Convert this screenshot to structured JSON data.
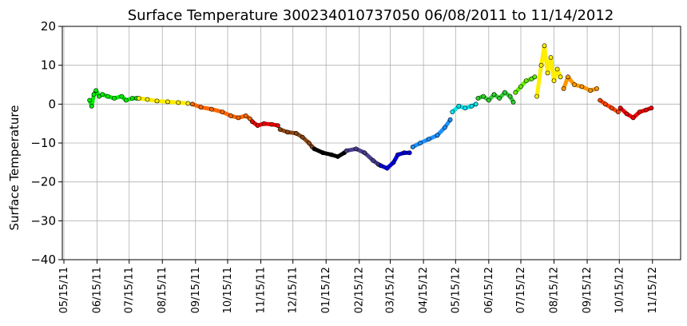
{
  "chart_data": {
    "type": "scatter",
    "title": "Surface Temperature 300234010737050  06/08/2011 to 11/14/2012",
    "ylabel": "Surface Temperature",
    "xlabel": "",
    "ylim": [
      -40,
      20
    ],
    "y_ticks": [
      "20",
      "10",
      "0",
      "−10",
      "−20",
      "−30",
      "−40"
    ],
    "y_tick_values": [
      20,
      10,
      0,
      -10,
      -20,
      -30,
      -40
    ],
    "x_ticks": [
      "05/15/11",
      "06/15/11",
      "07/15/11",
      "08/15/11",
      "09/15/11",
      "10/15/11",
      "11/15/11",
      "12/15/11",
      "01/15/12",
      "02/15/12",
      "03/15/12",
      "04/15/12",
      "05/15/12",
      "06/15/12",
      "07/15/12",
      "08/15/12",
      "09/15/12",
      "10/15/12",
      "11/15/12"
    ],
    "grid": true,
    "series": [
      {
        "color": "#00ee00",
        "points": [
          [
            "2011-06-08",
            1.0
          ],
          [
            "2011-06-10",
            -0.5
          ],
          [
            "2011-06-12",
            2.5
          ],
          [
            "2011-06-14",
            3.5
          ],
          [
            "2011-06-17",
            2.0
          ],
          [
            "2011-06-20",
            2.5
          ],
          [
            "2011-06-25",
            2.0
          ],
          [
            "2011-07-01",
            1.5
          ],
          [
            "2011-07-08",
            2.0
          ],
          [
            "2011-07-12",
            1.0
          ],
          [
            "2011-07-18",
            1.5
          ],
          [
            "2011-07-22",
            1.5
          ]
        ]
      },
      {
        "color": "#ffee00",
        "points": [
          [
            "2011-07-24",
            1.5
          ],
          [
            "2011-08-01",
            1.2
          ],
          [
            "2011-08-10",
            0.8
          ],
          [
            "2011-08-20",
            0.6
          ],
          [
            "2011-08-30",
            0.4
          ],
          [
            "2011-09-08",
            0.2
          ]
        ]
      },
      {
        "color": "#ff6600",
        "points": [
          [
            "2011-09-12",
            0.0
          ],
          [
            "2011-09-20",
            -0.8
          ],
          [
            "2011-09-30",
            -1.3
          ],
          [
            "2011-10-10",
            -2.0
          ],
          [
            "2011-10-18",
            -3.0
          ],
          [
            "2011-10-25",
            -3.5
          ],
          [
            "2011-11-01",
            -3.0
          ],
          [
            "2011-11-05",
            -3.8
          ]
        ]
      },
      {
        "color": "#ee0000",
        "points": [
          [
            "2011-11-07",
            -4.5
          ],
          [
            "2011-11-12",
            -5.5
          ],
          [
            "2011-11-18",
            -5.0
          ],
          [
            "2011-11-25",
            -5.2
          ],
          [
            "2011-12-01",
            -5.5
          ]
        ]
      },
      {
        "color": "#8b4513",
        "points": [
          [
            "2011-12-03",
            -6.5
          ],
          [
            "2011-12-10",
            -7.2
          ],
          [
            "2011-12-18",
            -7.5
          ],
          [
            "2011-12-24",
            -8.5
          ],
          [
            "2011-12-30",
            -10.0
          ],
          [
            "2012-01-02",
            -11.0
          ]
        ]
      },
      {
        "color": "#000000",
        "points": [
          [
            "2012-01-04",
            -11.5
          ],
          [
            "2012-01-12",
            -12.5
          ],
          [
            "2012-01-20",
            -13.0
          ],
          [
            "2012-01-26",
            -13.5
          ],
          [
            "2012-02-01",
            -12.5
          ]
        ]
      },
      {
        "color": "#483d8b",
        "points": [
          [
            "2012-02-03",
            -12.0
          ],
          [
            "2012-02-12",
            -11.5
          ],
          [
            "2012-02-20",
            -12.5
          ],
          [
            "2012-02-28",
            -14.5
          ],
          [
            "2012-03-04",
            -15.5
          ]
        ]
      },
      {
        "color": "#0000dd",
        "points": [
          [
            "2012-03-06",
            -15.8
          ],
          [
            "2012-03-12",
            -16.5
          ],
          [
            "2012-03-18",
            -15.0
          ],
          [
            "2012-03-22",
            -13.0
          ],
          [
            "2012-03-28",
            -12.5
          ],
          [
            "2012-04-02",
            -12.5
          ]
        ]
      },
      {
        "color": "#1e90ff",
        "points": [
          [
            "2012-04-05",
            -11.0
          ],
          [
            "2012-04-12",
            -10.0
          ],
          [
            "2012-04-20",
            -9.0
          ],
          [
            "2012-04-28",
            -8.0
          ],
          [
            "2012-05-05",
            -6.0
          ],
          [
            "2012-05-10",
            -4.0
          ]
        ]
      },
      {
        "color": "#00e5ee",
        "points": [
          [
            "2012-05-12",
            -2.0
          ],
          [
            "2012-05-18",
            -0.5
          ],
          [
            "2012-05-24",
            -1.0
          ],
          [
            "2012-05-30",
            -0.5
          ],
          [
            "2012-06-03",
            0.0
          ]
        ]
      },
      {
        "color": "#33cc33",
        "points": [
          [
            "2012-06-05",
            1.5
          ],
          [
            "2012-06-10",
            2.0
          ],
          [
            "2012-06-15",
            1.0
          ],
          [
            "2012-06-20",
            2.5
          ],
          [
            "2012-06-25",
            1.5
          ],
          [
            "2012-06-30",
            3.0
          ],
          [
            "2012-07-05",
            2.0
          ],
          [
            "2012-07-08",
            0.5
          ]
        ]
      },
      {
        "color": "#66ee00",
        "points": [
          [
            "2012-07-10",
            3.0
          ],
          [
            "2012-07-15",
            4.5
          ],
          [
            "2012-07-20",
            6.0
          ],
          [
            "2012-07-25",
            6.5
          ],
          [
            "2012-07-28",
            7.0
          ]
        ]
      },
      {
        "color": "#ffee00",
        "points": [
          [
            "2012-07-30",
            2.0
          ],
          [
            "2012-08-03",
            10.0
          ],
          [
            "2012-08-06",
            15.0
          ],
          [
            "2012-08-09",
            8.0
          ],
          [
            "2012-08-12",
            12.0
          ],
          [
            "2012-08-15",
            6.0
          ],
          [
            "2012-08-18",
            9.0
          ],
          [
            "2012-08-21",
            7.0
          ]
        ]
      },
      {
        "color": "#ff9900",
        "points": [
          [
            "2012-08-24",
            4.0
          ],
          [
            "2012-08-28",
            7.0
          ],
          [
            "2012-09-03",
            5.0
          ],
          [
            "2012-09-10",
            4.5
          ],
          [
            "2012-09-18",
            3.5
          ],
          [
            "2012-09-24",
            4.0
          ]
        ]
      },
      {
        "color": "#ff4500",
        "points": [
          [
            "2012-09-27",
            1.0
          ],
          [
            "2012-10-02",
            0.0
          ],
          [
            "2012-10-08",
            -1.0
          ],
          [
            "2012-10-14",
            -2.0
          ]
        ]
      },
      {
        "color": "#ee0000",
        "points": [
          [
            "2012-10-16",
            -1.0
          ],
          [
            "2012-10-22",
            -2.5
          ],
          [
            "2012-10-28",
            -3.5
          ],
          [
            "2012-11-03",
            -2.0
          ],
          [
            "2012-11-09",
            -1.5
          ],
          [
            "2012-11-14",
            -1.0
          ]
        ]
      }
    ]
  }
}
